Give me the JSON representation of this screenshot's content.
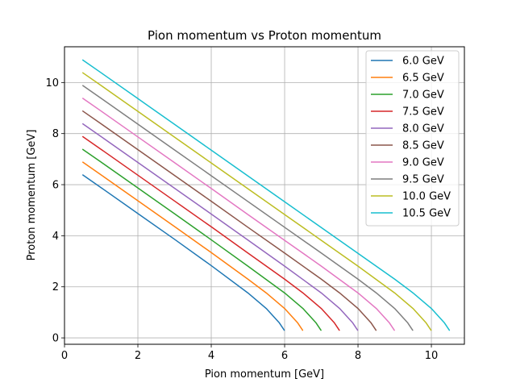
{
  "chart_data": {
    "type": "line",
    "title": "Pion momentum vs Proton momentum",
    "xlabel": "Pion momentum [GeV]",
    "ylabel": "Proton momentum [GeV]",
    "xlim": [
      0,
      10.9
    ],
    "ylim": [
      -0.25,
      11.4
    ],
    "xticks": [
      0,
      2,
      4,
      6,
      8,
      10
    ],
    "yticks": [
      0,
      2,
      4,
      6,
      8,
      10
    ],
    "grid": true,
    "legend_position": "top-right",
    "series": [
      {
        "name": "6.0 GeV",
        "color": "#1f77b4",
        "x": [
          0.5,
          1.0,
          2.0,
          3.0,
          4.0,
          5.0,
          5.5,
          5.85,
          5.99
        ],
        "y": [
          6.38,
          5.88,
          4.87,
          3.86,
          2.83,
          1.76,
          1.15,
          0.6,
          0.3
        ]
      },
      {
        "name": "6.5 GeV",
        "color": "#ff7f0e",
        "x": [
          0.5,
          1.0,
          2.0,
          3.0,
          4.0,
          5.0,
          5.5,
          6.0,
          6.35,
          6.49
        ],
        "y": [
          6.88,
          6.38,
          5.37,
          4.36,
          3.34,
          2.3,
          1.76,
          1.15,
          0.6,
          0.3
        ]
      },
      {
        "name": "7.0 GeV",
        "color": "#2ca02c",
        "x": [
          0.5,
          1.0,
          2.0,
          3.0,
          4.0,
          5.0,
          6.0,
          6.5,
          6.85,
          6.99
        ],
        "y": [
          7.38,
          6.88,
          5.87,
          4.86,
          3.84,
          2.81,
          1.76,
          1.15,
          0.6,
          0.3
        ]
      },
      {
        "name": "7.5 GeV",
        "color": "#d62728",
        "x": [
          0.5,
          1.0,
          2.0,
          3.0,
          4.0,
          5.0,
          6.0,
          6.5,
          7.0,
          7.35,
          7.49
        ],
        "y": [
          7.88,
          7.38,
          6.37,
          5.36,
          4.35,
          3.32,
          2.3,
          1.76,
          1.15,
          0.6,
          0.3
        ]
      },
      {
        "name": "8.0 GeV",
        "color": "#9467bd",
        "x": [
          0.5,
          1.0,
          2.0,
          3.0,
          4.0,
          5.0,
          6.0,
          7.0,
          7.5,
          7.85,
          7.99
        ],
        "y": [
          8.38,
          7.88,
          6.87,
          5.86,
          4.85,
          3.83,
          2.81,
          1.76,
          1.15,
          0.6,
          0.3
        ]
      },
      {
        "name": "8.5 GeV",
        "color": "#8c564b",
        "x": [
          0.5,
          1.0,
          2.0,
          3.0,
          4.0,
          5.0,
          6.0,
          7.0,
          7.5,
          8.0,
          8.35,
          8.49
        ],
        "y": [
          8.88,
          8.38,
          7.37,
          6.36,
          5.35,
          4.33,
          3.32,
          2.3,
          1.76,
          1.15,
          0.6,
          0.3
        ]
      },
      {
        "name": "9.0 GeV",
        "color": "#e377c2",
        "x": [
          0.5,
          1.0,
          2.0,
          3.0,
          4.0,
          5.0,
          6.0,
          7.0,
          8.0,
          8.5,
          8.85,
          8.99
        ],
        "y": [
          9.38,
          8.88,
          7.87,
          6.86,
          5.85,
          4.83,
          3.82,
          2.81,
          1.76,
          1.15,
          0.6,
          0.3
        ]
      },
      {
        "name": "9.5 GeV",
        "color": "#7f7f7f",
        "x": [
          0.5,
          1.0,
          2.0,
          3.0,
          4.0,
          5.0,
          6.0,
          7.0,
          8.0,
          8.5,
          9.0,
          9.35,
          9.49
        ],
        "y": [
          9.88,
          9.38,
          8.37,
          7.36,
          6.35,
          5.34,
          4.33,
          3.32,
          2.3,
          1.76,
          1.15,
          0.6,
          0.3
        ]
      },
      {
        "name": "10.0 GeV",
        "color": "#bcbd22",
        "x": [
          0.5,
          1.0,
          2.0,
          3.0,
          4.0,
          5.0,
          6.0,
          7.0,
          8.0,
          9.0,
          9.5,
          9.85,
          9.99
        ],
        "y": [
          10.38,
          9.88,
          8.87,
          7.86,
          6.85,
          5.84,
          4.83,
          3.82,
          2.81,
          1.76,
          1.15,
          0.6,
          0.3
        ]
      },
      {
        "name": "10.5 GeV",
        "color": "#17becf",
        "x": [
          0.5,
          1.0,
          2.0,
          3.0,
          4.0,
          5.0,
          6.0,
          7.0,
          8.0,
          9.0,
          9.5,
          10.0,
          10.35,
          10.49
        ],
        "y": [
          10.88,
          10.38,
          9.37,
          8.36,
          7.35,
          6.34,
          5.33,
          4.32,
          3.31,
          2.3,
          1.76,
          1.15,
          0.6,
          0.3
        ]
      }
    ]
  }
}
